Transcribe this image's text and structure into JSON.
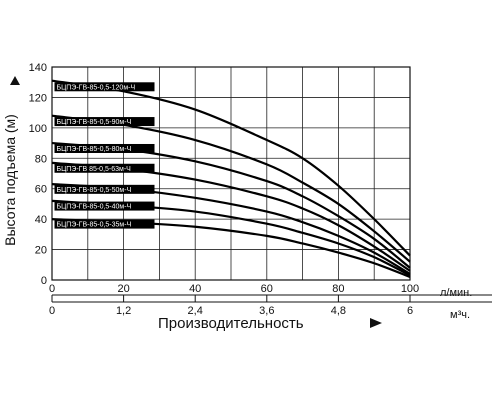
{
  "chart_data": {
    "type": "line",
    "title": "",
    "ylabel": "Высота подъема (м)",
    "xlabel": "Производительность",
    "x_unit_primary": "л/мин.",
    "x_unit_secondary": "м³ч.",
    "xlim": [
      0,
      100
    ],
    "ylim": [
      0,
      140
    ],
    "x_ticks": [
      0,
      20,
      40,
      60,
      80,
      100
    ],
    "x_ticks_secondary": [
      "0",
      "1,2",
      "2,4",
      "3,6",
      "4,8",
      "6"
    ],
    "y_ticks": [
      0,
      20,
      40,
      60,
      80,
      100,
      120,
      140
    ],
    "grid": true,
    "series": [
      {
        "name": "БЦПЭ-ГВ-85-0,5-120м-Ч",
        "x": [
          0,
          20,
          40,
          60,
          70,
          80,
          90,
          100
        ],
        "y": [
          131,
          124,
          112,
          92,
          80,
          62,
          40,
          16
        ]
      },
      {
        "name": "БЦПЭ-ГВ-85-0,5-90м-Ч",
        "x": [
          0,
          20,
          40,
          60,
          70,
          80,
          90,
          100
        ],
        "y": [
          108,
          102,
          92,
          76,
          64,
          50,
          32,
          12
        ]
      },
      {
        "name": "БЦПЭ-ГВ-85-0,5-80м-Ч",
        "x": [
          0,
          20,
          40,
          60,
          70,
          80,
          90,
          100
        ],
        "y": [
          90,
          86,
          78,
          65,
          55,
          42,
          27,
          8
        ]
      },
      {
        "name": "БЦПЭ-ГВ 85-0,5-63м-Ч",
        "x": [
          0,
          20,
          40,
          60,
          70,
          80,
          90,
          100
        ],
        "y": [
          77,
          73,
          66,
          55,
          47,
          36,
          22,
          6
        ]
      },
      {
        "name": "БЦПЭ-ГВ-85-0,5-50м-Ч",
        "x": [
          0,
          20,
          40,
          60,
          70,
          80,
          90,
          100
        ],
        "y": [
          63,
          60,
          54,
          45,
          38,
          29,
          18,
          4
        ]
      },
      {
        "name": "БЦПЭ-ГВ-85-0,5-40м-Ч",
        "x": [
          0,
          20,
          40,
          60,
          70,
          80,
          90,
          100
        ],
        "y": [
          52,
          49,
          45,
          37,
          31,
          24,
          15,
          3
        ]
      },
      {
        "name": "БЦПЭ-ГВ-85-0,5-35м-Ч",
        "x": [
          0,
          20,
          40,
          60,
          70,
          80,
          90,
          100
        ],
        "y": [
          40,
          38,
          35,
          29,
          24,
          18,
          11,
          2
        ]
      }
    ]
  }
}
